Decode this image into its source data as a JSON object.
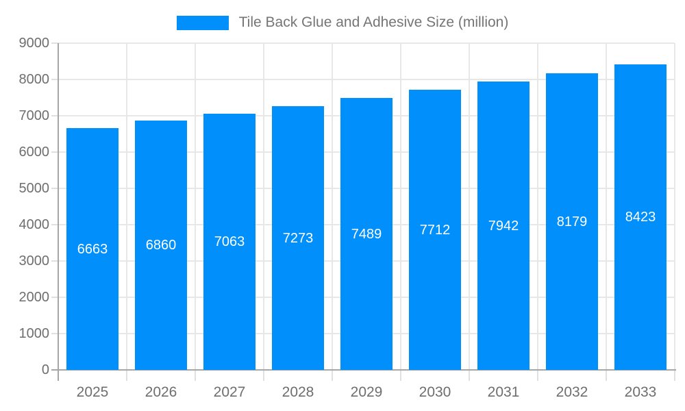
{
  "chart_data": {
    "type": "bar",
    "title": "Tile Back Glue and Adhesive Size (million)",
    "categories": [
      "2025",
      "2026",
      "2027",
      "2028",
      "2029",
      "2030",
      "2031",
      "2032",
      "2033"
    ],
    "values": [
      6663,
      6860,
      7063,
      7273,
      7489,
      7712,
      7942,
      8179,
      8423
    ],
    "xlabel": "",
    "ylabel": "",
    "ylim": [
      0,
      9000
    ],
    "ytick_values": [
      0,
      1000,
      2000,
      3000,
      4000,
      5000,
      6000,
      7000,
      8000,
      9000
    ],
    "ytick_labels": [
      "0",
      "1000",
      "2000",
      "3000",
      "4000",
      "5000",
      "6000",
      "7000",
      "8000",
      "9000"
    ],
    "grid": true,
    "legend_position": "top-center",
    "bar_value_labels_visible": true
  },
  "colors": {
    "bar": "#008FFB",
    "bar_label": "#ffffff",
    "axis_label": "#6e6e6e",
    "legend_text": "#757575",
    "grid_line": "#e7e7e7",
    "tick": "#e0e0e0",
    "axis_line": "#a6a6a6",
    "background": "#ffffff"
  }
}
